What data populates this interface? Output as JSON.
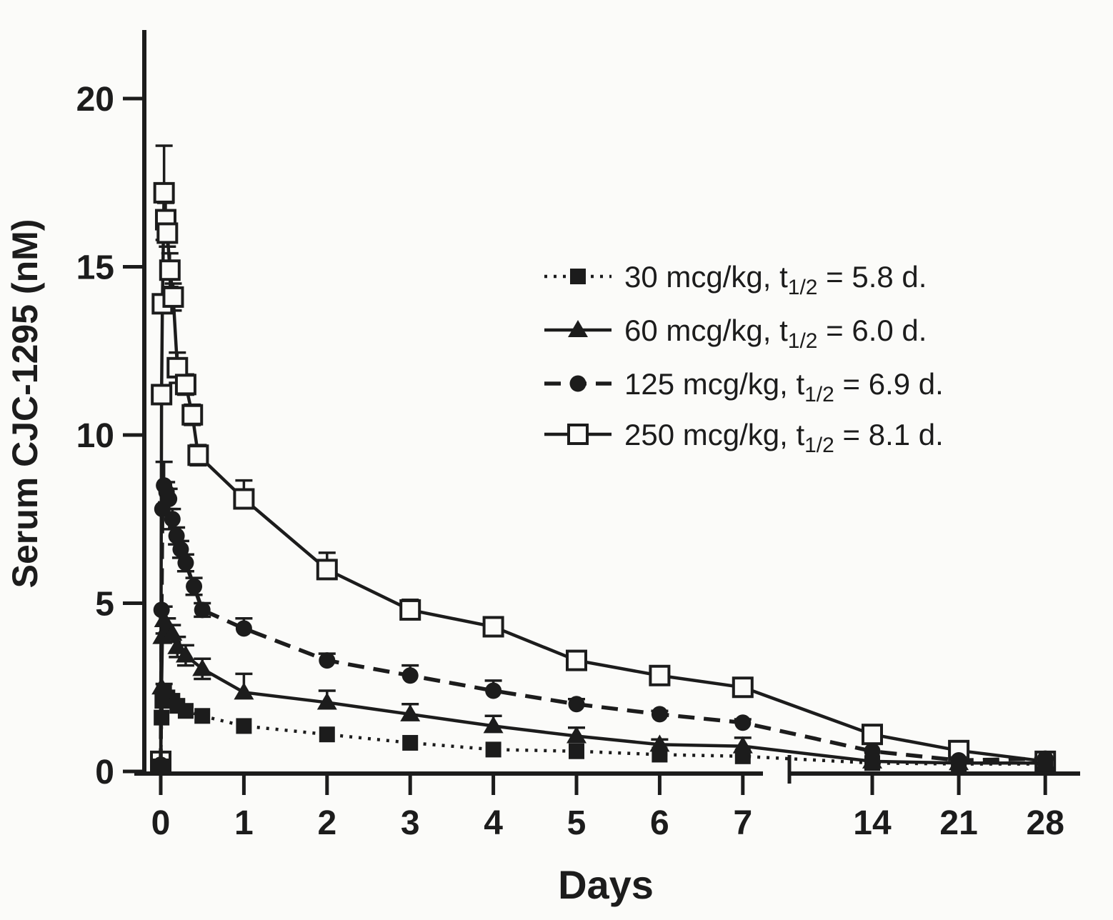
{
  "figure": {
    "background": "#fbfbf9",
    "ink": "#1c1c1c"
  },
  "chart_data": {
    "type": "line",
    "title": "",
    "xlabel": "Days",
    "ylabel": "Serum CJC-1295 (nM)",
    "ylim": [
      0,
      22
    ],
    "y_ticks": [
      0,
      5,
      10,
      15,
      20
    ],
    "x_ticks_left": [
      0,
      1,
      2,
      3,
      4,
      5,
      6,
      7
    ],
    "x_ticks_right": [
      14,
      21,
      28
    ],
    "axis_break_between": [
      7,
      14
    ],
    "grid": false,
    "legend_position": "upper-right-inside",
    "series": [
      {
        "name": "30 mcg/kg",
        "t_half_d": 5.8,
        "legend": {
          "prefix": "30 mcg/kg, t",
          "sub": "1/2",
          "suffix": " = 5.8 d."
        },
        "marker": "filled-square",
        "line": "dotted",
        "x": [
          0,
          0.01,
          0.02,
          0.04,
          0.08,
          0.14,
          0.2,
          0.3,
          0.5,
          1,
          2,
          3,
          4,
          5,
          6,
          7,
          14,
          21,
          28
        ],
        "y": [
          0.15,
          1.6,
          2.1,
          2.35,
          2.2,
          2.1,
          1.95,
          1.8,
          1.65,
          1.35,
          1.1,
          0.85,
          0.65,
          0.6,
          0.5,
          0.45,
          0.25,
          0.22,
          0.22
        ],
        "err": [
          0,
          0,
          0,
          0.25,
          0,
          0,
          0,
          0,
          0,
          0,
          0,
          0,
          0,
          0,
          0,
          0,
          0,
          0,
          0
        ]
      },
      {
        "name": "60 mcg/kg",
        "t_half_d": 6.0,
        "legend": {
          "prefix": "60 mcg/kg, t",
          "sub": "1/2",
          "suffix": " = 6.0 d."
        },
        "marker": "filled-triangle",
        "line": "solid",
        "x": [
          0,
          0.01,
          0.02,
          0.04,
          0.08,
          0.14,
          0.2,
          0.3,
          0.5,
          1,
          2,
          3,
          4,
          5,
          6,
          7,
          14,
          21,
          28
        ],
        "y": [
          0.2,
          2.5,
          4.0,
          4.5,
          4.3,
          4.1,
          3.7,
          3.45,
          3.05,
          2.35,
          2.05,
          1.7,
          1.35,
          1.05,
          0.8,
          0.75,
          0.3,
          0.25,
          0.25
        ],
        "err": [
          0,
          0,
          0,
          0.4,
          0.25,
          0.25,
          0.3,
          0.3,
          0.3,
          0.55,
          0.35,
          0.3,
          0.3,
          0.25,
          0.15,
          0.25,
          0,
          0,
          0
        ]
      },
      {
        "name": "125 mcg/kg",
        "t_half_d": 6.9,
        "legend": {
          "prefix": "125 mcg/kg, t",
          "sub": "1/2",
          "suffix": " = 6.9 d."
        },
        "marker": "filled-circle",
        "line": "dashed",
        "x": [
          0,
          0.01,
          0.02,
          0.04,
          0.07,
          0.1,
          0.14,
          0.19,
          0.24,
          0.3,
          0.4,
          0.5,
          1,
          2,
          3,
          4,
          5,
          6,
          7,
          14,
          21,
          28
        ],
        "y": [
          0.2,
          4.8,
          7.8,
          8.5,
          8.3,
          8.1,
          7.5,
          7.0,
          6.6,
          6.2,
          5.5,
          4.8,
          4.25,
          3.3,
          2.85,
          2.4,
          2.0,
          1.7,
          1.45,
          0.6,
          0.33,
          0.38
        ],
        "err": [
          0,
          0,
          0,
          0.7,
          0.3,
          0.3,
          0.3,
          0.25,
          0.25,
          0.25,
          0.25,
          0.2,
          0.3,
          0.2,
          0.3,
          0.3,
          0.15,
          0.1,
          0.1,
          0,
          0,
          0
        ]
      },
      {
        "name": "250 mcg/kg",
        "t_half_d": 8.1,
        "legend": {
          "prefix": "250 mcg/kg, t",
          "sub": "1/2",
          "suffix": " = 8.1 d."
        },
        "marker": "open-square",
        "line": "solid",
        "x": [
          0,
          0.01,
          0.02,
          0.04,
          0.06,
          0.08,
          0.11,
          0.15,
          0.2,
          0.3,
          0.38,
          0.45,
          1,
          2,
          3,
          4,
          5,
          6,
          7,
          14,
          21,
          28
        ],
        "y": [
          0.3,
          11.2,
          13.9,
          17.2,
          16.4,
          16.0,
          14.9,
          14.1,
          12.0,
          11.5,
          10.6,
          9.4,
          8.1,
          6.0,
          4.8,
          4.3,
          3.3,
          2.85,
          2.5,
          1.1,
          0.62,
          0.3
        ],
        "err": [
          0,
          0,
          0,
          1.4,
          0.5,
          0.4,
          0.5,
          0.4,
          0.45,
          0.3,
          0.3,
          0.3,
          0.55,
          0.5,
          0.3,
          0.2,
          0.15,
          0.15,
          0.25,
          0.15,
          0,
          0
        ]
      }
    ]
  }
}
